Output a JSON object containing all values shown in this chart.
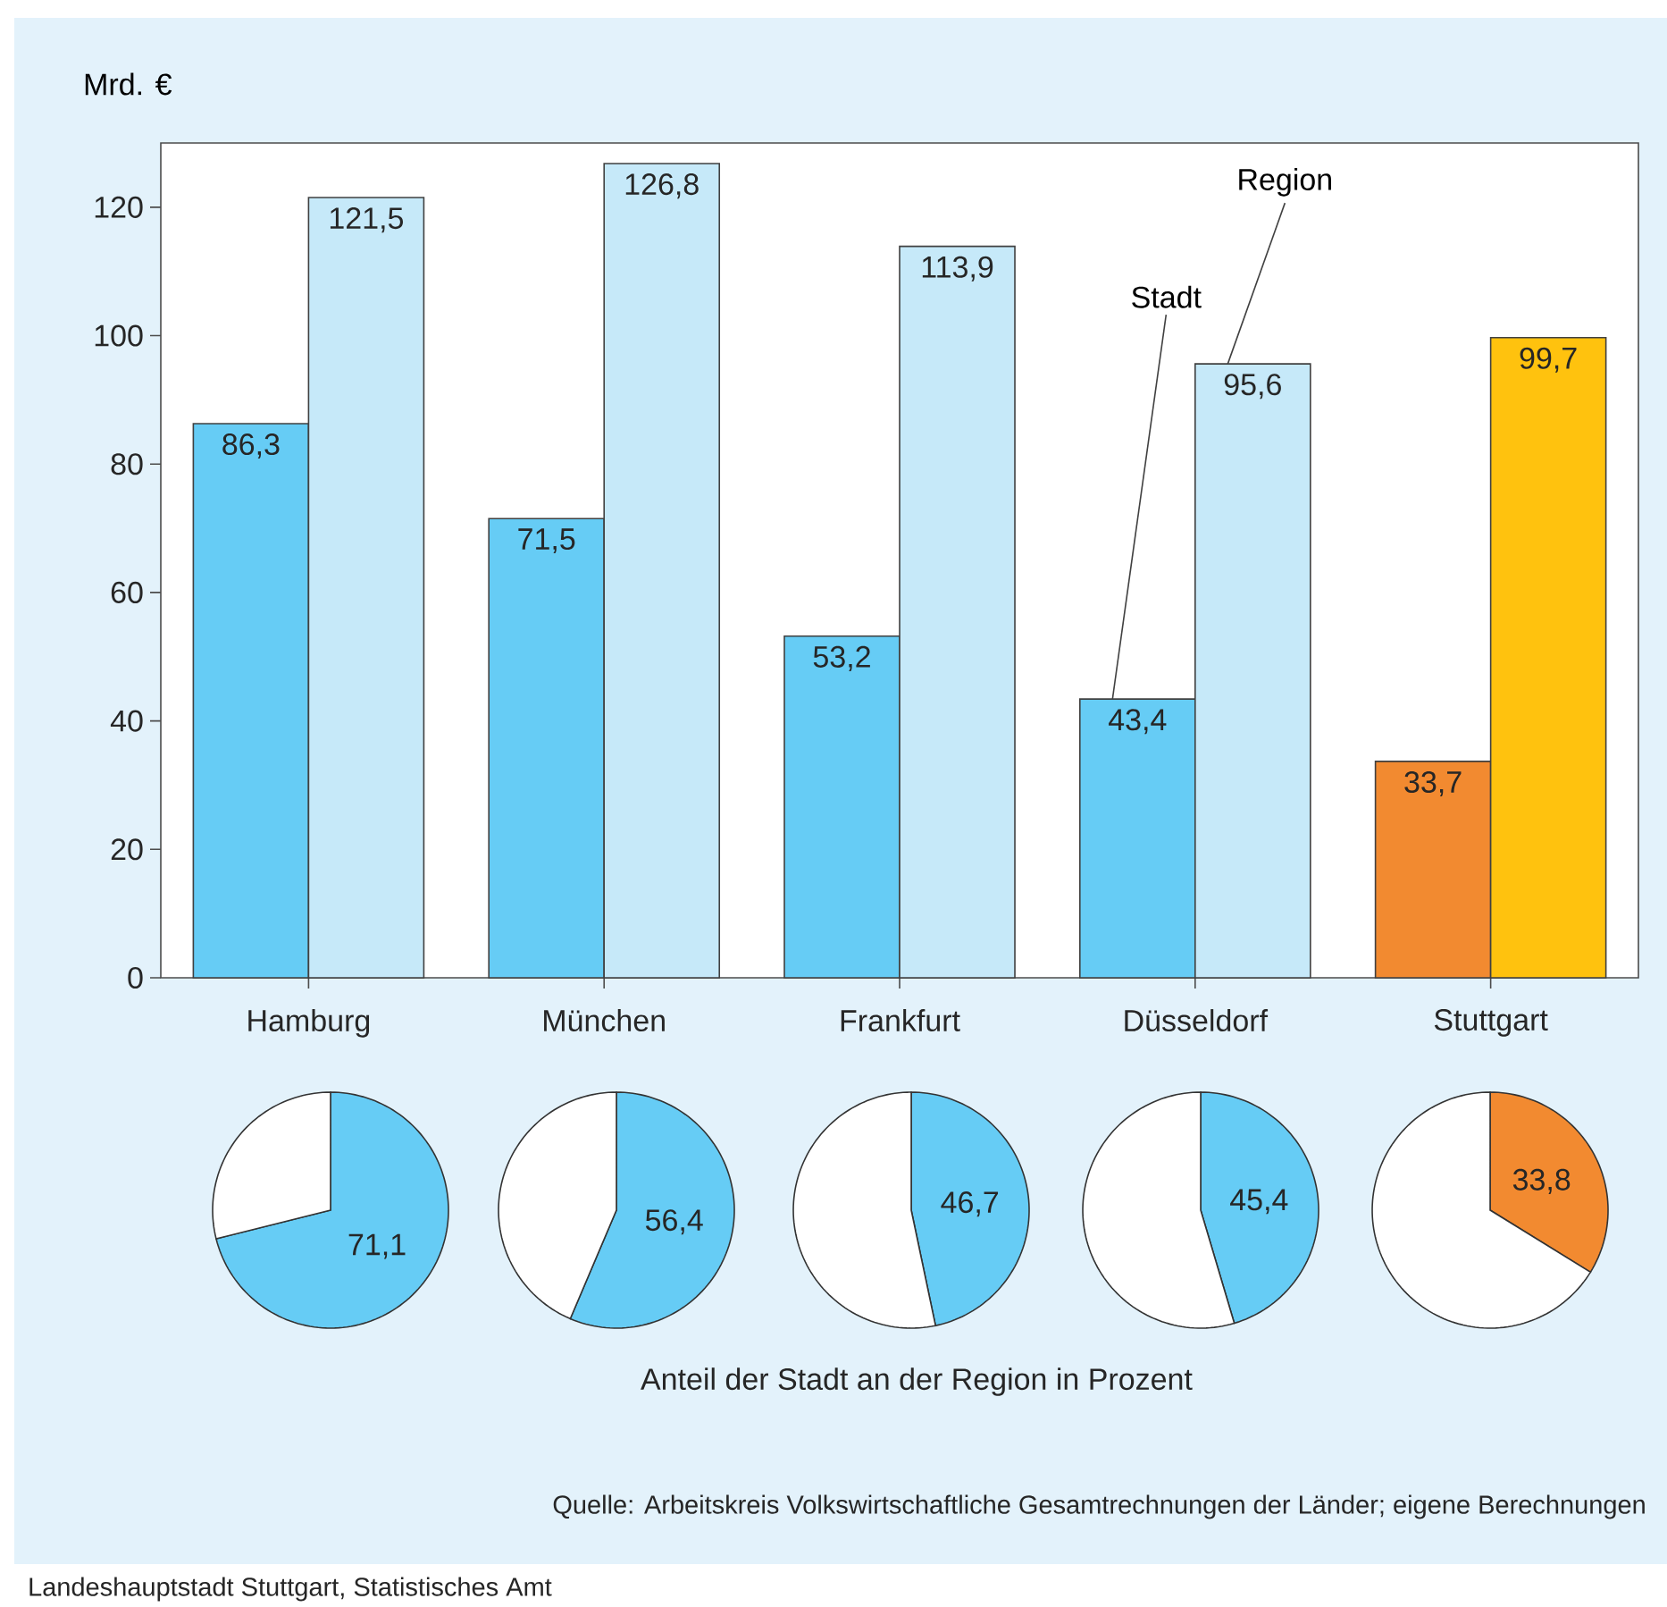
{
  "chart_data": [
    {
      "type": "bar",
      "ylabel": "Mrd. €",
      "categories": [
        "Hamburg",
        "München",
        "Frankfurt",
        "Düsseldorf",
        "Stuttgart"
      ],
      "ylim": [
        0,
        130
      ],
      "yticks": [
        0,
        20,
        40,
        60,
        80,
        100,
        120
      ],
      "series": [
        {
          "name": "Stadt",
          "colors": [
            "#66ccf5",
            "#66ccf5",
            "#66ccf5",
            "#66ccf5",
            "#f28a30"
          ],
          "values": [
            86.3,
            71.5,
            53.2,
            43.4,
            33.7
          ],
          "value_labels": [
            "86,3",
            "71,5",
            "53,2",
            "43,4",
            "33,7"
          ]
        },
        {
          "name": "Region",
          "colors": [
            "#c6e9f9",
            "#c6e9f9",
            "#c6e9f9",
            "#c6e9f9",
            "#ffc20e"
          ],
          "values": [
            121.5,
            126.8,
            113.9,
            95.6,
            99.7
          ],
          "value_labels": [
            "121,5",
            "126,8",
            "113,9",
            "95,6",
            "99,7"
          ]
        }
      ],
      "annotations": [
        "Anteil der Stadt an der Region in Prozent",
        "Quelle: Arbeitskreis Volkswirtschaftliche Gesamtrechnungen der Länder; eigene Berechnungen",
        "Landeshauptstadt Stuttgart, Statistisches Amt"
      ]
    },
    {
      "type": "pie",
      "categories": [
        null,
        null
      ],
      "values": [
        71.1,
        28.9
      ],
      "colors": [
        "#66ccf5",
        "#ffffff"
      ],
      "value_labels": [
        "71,1",
        null
      ]
    },
    {
      "type": "pie",
      "categories": [
        null,
        null
      ],
      "values": [
        56.4,
        43.6
      ],
      "colors": [
        "#66ccf5",
        "#ffffff"
      ],
      "value_labels": [
        "56,4",
        null
      ]
    },
    {
      "type": "pie",
      "categories": [
        null,
        null
      ],
      "values": [
        46.7,
        53.3
      ],
      "colors": [
        "#66ccf5",
        "#ffffff"
      ],
      "value_labels": [
        "46,7",
        null
      ]
    },
    {
      "type": "pie",
      "categories": [
        null,
        null
      ],
      "values": [
        45.4,
        54.6
      ],
      "colors": [
        "#66ccf5",
        "#ffffff"
      ],
      "value_labels": [
        "45,4",
        null
      ]
    },
    {
      "type": "pie",
      "categories": [
        null,
        null
      ],
      "values": [
        33.8,
        66.2
      ],
      "colors": [
        "#f28a30",
        "#ffffff"
      ],
      "value_labels": [
        "33,8",
        null
      ]
    }
  ]
}
